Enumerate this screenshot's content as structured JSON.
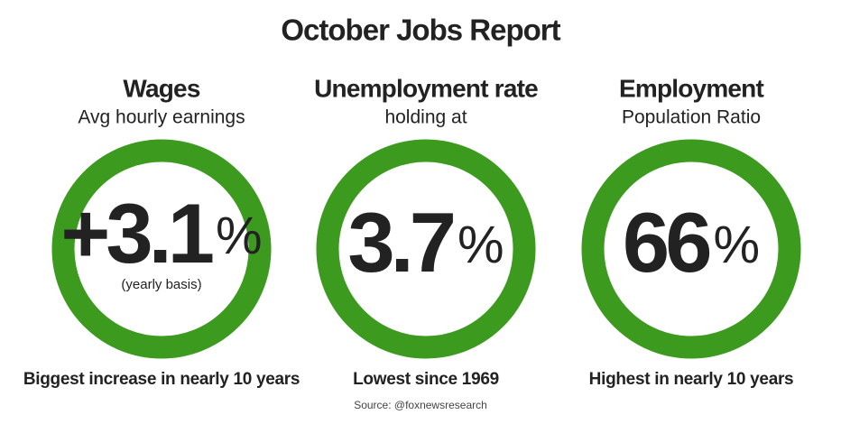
{
  "title": "October Jobs Report",
  "panels": [
    {
      "heading": "Wages",
      "subheading": "Avg hourly earnings",
      "value": "+3.1",
      "unit": "%",
      "detail": "(yearly basis)",
      "note": "Biggest increase in nearly 10 years"
    },
    {
      "heading": "Unemployment rate",
      "subheading": "holding at",
      "value": "3.7",
      "unit": "%",
      "note": "Lowest since 1969"
    },
    {
      "heading": "Employment",
      "subheading": "Population Ratio",
      "value": "66",
      "unit": "%",
      "note": "Highest in nearly 10 years"
    }
  ],
  "source": "Source: @foxnewsresearch"
}
